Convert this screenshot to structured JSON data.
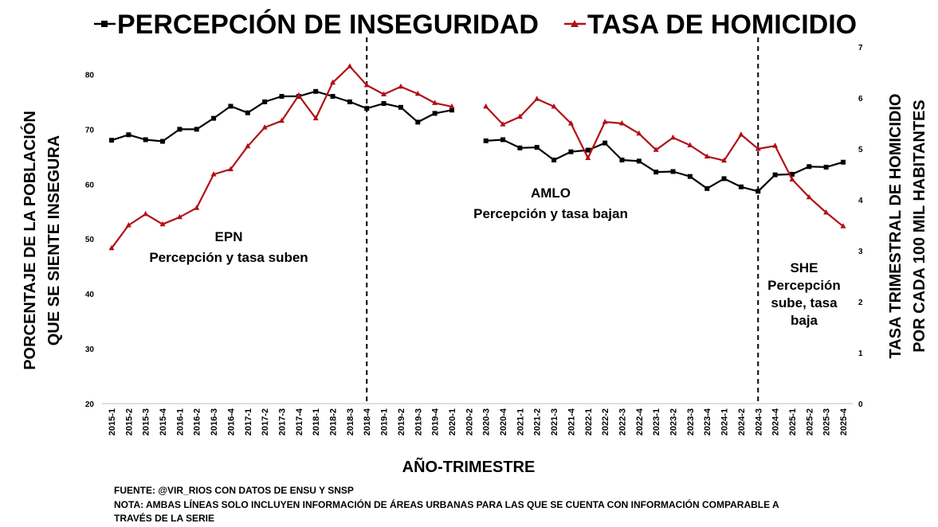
{
  "chart_data": {
    "type": "line",
    "legend": {
      "perception_label": "PERCEPCIÓN DE INSEGURIDAD",
      "homicide_label": "TASA DE HOMICIDIO"
    },
    "xlabel": "AÑO-TRIMESTRE",
    "ylabel_left": [
      "PORCENTAJE DE LA POBLACIÓN",
      "QUE SE SIENTE INSEGURA"
    ],
    "ylabel_right": [
      "TASA TRIMESTRAL DE HOMICIDIO",
      "POR CADA 100 MIL HABITANTES"
    ],
    "y_left": {
      "min": 20,
      "max": 85,
      "ticks": [
        20,
        30,
        40,
        50,
        60,
        70,
        80
      ]
    },
    "y_right": {
      "min": 0,
      "max": 7,
      "ticks": [
        0,
        1,
        2,
        3,
        4,
        5,
        6,
        7
      ]
    },
    "categories": [
      "2015-1",
      "2015-2",
      "2015-3",
      "2015-4",
      "2016-1",
      "2016-2",
      "2016-3",
      "2016-4",
      "2017-1",
      "2017-2",
      "2017-3",
      "2017-4",
      "2018-1",
      "2018-2",
      "2018-3",
      "2018-4",
      "2019-1",
      "2019-2",
      "2019-3",
      "2019-4",
      "2020-1",
      "2020-2",
      "2020-3",
      "2020-4",
      "2021-1",
      "2021-2",
      "2021-3",
      "2021-4",
      "2022-1",
      "2022-2",
      "2022-3",
      "2022-4",
      "2023-1",
      "2023-2",
      "2023-3",
      "2023-4",
      "2024-1",
      "2024-2",
      "2024-3",
      "2024-4",
      "2025-1",
      "2025-2",
      "2025-3",
      "2025-4"
    ],
    "series": [
      {
        "name": "PERCEPCIÓN DE INSEGURIDAD",
        "axis": "left",
        "color": "#000000",
        "marker": "square",
        "values": [
          68,
          69,
          68.1,
          67.8,
          70,
          70,
          72,
          74.2,
          73,
          75,
          76,
          76,
          76.9,
          76,
          75,
          73.8,
          74.7,
          74,
          71.3,
          72.9,
          73.5,
          null,
          67.9,
          68.1,
          66.6,
          66.7,
          64.4,
          65.9,
          66.2,
          67.5,
          64.4,
          64.2,
          62.2,
          62.3,
          61.4,
          59.2,
          61,
          59.5,
          58.7,
          61.7,
          61.8,
          63.2,
          63.1,
          64
        ],
        "note_gap": "2020-2"
      },
      {
        "name": "TASA DE HOMICIDIO",
        "axis": "right",
        "color": "#b01116",
        "marker": "triangle",
        "values": [
          3.05,
          3.5,
          3.72,
          3.52,
          3.66,
          3.84,
          4.5,
          4.6,
          5.05,
          5.42,
          5.55,
          6.05,
          5.6,
          6.3,
          6.62,
          6.25,
          6.07,
          6.22,
          6.08,
          5.9,
          5.83,
          null,
          5.83,
          5.48,
          5.63,
          5.98,
          5.83,
          5.5,
          4.82,
          5.53,
          5.5,
          5.3,
          4.98,
          5.22,
          5.07,
          4.85,
          4.77,
          5.28,
          5.0,
          5.06,
          4.4,
          4.05,
          3.75,
          3.48
        ]
      }
    ],
    "vertical_markers": [
      "2018-4",
      "2024-3"
    ],
    "annotations": [
      {
        "id": "epn",
        "lines": [
          "EPN",
          "Percepción y tasa suben"
        ]
      },
      {
        "id": "amlo",
        "lines": [
          "AMLO",
          "Percepción y tasa bajan"
        ]
      },
      {
        "id": "she",
        "lines": [
          "SHE",
          "Percepción",
          "sube, tasa",
          "baja"
        ]
      }
    ],
    "grid": false
  },
  "footer": {
    "source": "FUENTE: @VIR_RIOS CON DATOS DE ENSU Y SNSP",
    "note_line1": "NOTA: AMBAS LÍNEAS SOLO INCLUYEN INFORMACIÓN DE ÁREAS URBANAS PARA LAS QUE SE CUENTA CON INFORMACIÓN COMPARABLE A",
    "note_line2": "TRAVÉS DE LA SERIE"
  }
}
